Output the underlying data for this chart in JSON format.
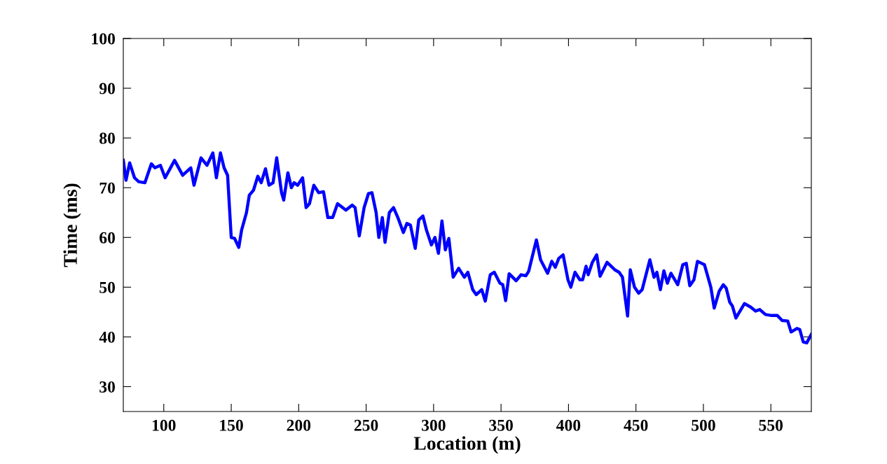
{
  "chart_data": {
    "type": "line",
    "xlabel": "Location (m)",
    "ylabel": "Time (ms)",
    "xlim": [
      70,
      580
    ],
    "ylim": [
      25,
      100
    ],
    "xticks": [
      100,
      150,
      200,
      250,
      300,
      350,
      400,
      450,
      500,
      550
    ],
    "yticks": [
      30,
      40,
      50,
      60,
      70,
      80,
      90,
      100
    ],
    "grid": false,
    "legend": false,
    "marker": "none",
    "line_style": "solid",
    "series": [
      {
        "color": "#0000ff",
        "x": [
          70,
          72,
          74.7,
          78.3,
          81.4,
          86,
          90.8,
          93.4,
          97.5,
          101,
          108,
          114,
          120,
          122.4,
          127.6,
          132,
          136.4,
          139,
          142,
          144.7,
          147.3,
          150,
          152.5,
          155.6,
          157.7,
          161.3,
          163.4,
          166.5,
          169.7,
          172.2,
          175.4,
          178,
          181,
          183.7,
          187.3,
          188.9,
          192,
          194.6,
          196.6,
          199.2,
          202.9,
          205.5,
          208,
          211.2,
          214.8,
          218.4,
          221.6,
          225.2,
          228.8,
          235,
          239.7,
          241.8,
          244.9,
          248.5,
          251.7,
          254.3,
          257.4,
          259.4,
          262,
          264,
          267.2,
          270.3,
          273.5,
          277.6,
          280.2,
          282.8,
          286.4,
          289,
          292.1,
          294.7,
          298.4,
          301,
          303.6,
          306.2,
          308.7,
          311.3,
          314.5,
          318.6,
          322.8,
          325.4,
          329,
          331.6,
          335.7,
          338.3,
          342,
          345,
          349.2,
          351.3,
          353.4,
          356,
          361.2,
          364.8,
          368.4,
          370.5,
          376.2,
          379.3,
          384.5,
          387.6,
          390.2,
          392.8,
          396,
          399.6,
          401.7,
          404.8,
          408.4,
          410.5,
          413,
          414.6,
          417.7,
          420.9,
          423.4,
          428.6,
          434.3,
          437.5,
          440,
          443.8,
          445.8,
          448.9,
          452,
          454.6,
          460.3,
          463.4,
          465.5,
          468.1,
          470.7,
          473.3,
          475.9,
          481,
          484.7,
          487.3,
          489.9,
          493,
          495.6,
          500.8,
          505.5,
          508,
          511.7,
          514.8,
          516.9,
          519.5,
          521.5,
          524.1,
          530.4,
          535,
          538.7,
          541.8,
          546,
          550.6,
          554.8,
          558.4,
          562.5,
          565,
          569.3,
          571.4,
          574,
          576.6,
          580
        ],
        "values": [
          75.5,
          71.5,
          75,
          72,
          71.2,
          71,
          74.8,
          74,
          74.5,
          72,
          75.5,
          72.5,
          74,
          70.5,
          76,
          74.5,
          77,
          72,
          77,
          74,
          72.5,
          60,
          59.8,
          58,
          61.5,
          65,
          68.5,
          69.5,
          72.3,
          71,
          73.8,
          70.5,
          71,
          76,
          69,
          67.5,
          73,
          70,
          71,
          70.5,
          72,
          66,
          66.8,
          70.5,
          69,
          69.2,
          64,
          64,
          66.8,
          65.5,
          66.5,
          66,
          60.3,
          66,
          68.8,
          69,
          65,
          60,
          64,
          59,
          65,
          66,
          64,
          61,
          62.8,
          62.5,
          57.8,
          63.5,
          64.3,
          61.5,
          58.5,
          60,
          56.8,
          63.3,
          57.5,
          59.8,
          52,
          53.8,
          52,
          53,
          49.5,
          48.5,
          49.5,
          47.2,
          52.5,
          53,
          50.8,
          50.5,
          47.3,
          52.7,
          51.3,
          52.5,
          52.3,
          53.2,
          59.5,
          55.5,
          52.8,
          55.2,
          54,
          55.8,
          56.5,
          51.5,
          50,
          53,
          51.5,
          51.5,
          54.2,
          52.5,
          55,
          56.5,
          52.2,
          55,
          53.5,
          53,
          52,
          44.2,
          53.5,
          50,
          48.8,
          49.5,
          55.5,
          52,
          53,
          49.5,
          53.3,
          50.8,
          52.8,
          50.5,
          54.5,
          54.8,
          50.3,
          51.5,
          55.2,
          54.5,
          50,
          45.8,
          49.2,
          50.5,
          49.8,
          47,
          46.2,
          43.8,
          46.7,
          46,
          45.2,
          45.5,
          44.5,
          44.3,
          44.3,
          43.3,
          43.2,
          41,
          41.7,
          41.5,
          39,
          38.8,
          40.5
        ]
      }
    ]
  }
}
